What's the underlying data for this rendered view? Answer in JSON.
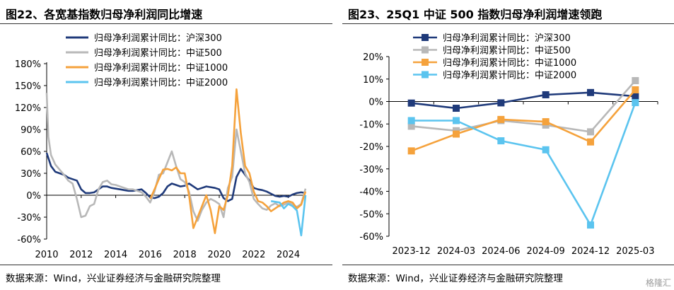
{
  "left": {
    "title": "图22、各宽基指数归母净利润同比增速",
    "source": "数据来源：Wind，兴业证券经济与金融研究院整理"
  },
  "right": {
    "title": "图23、25Q1 中证 500 指数归母净利润增速领跑",
    "source": "数据来源：Wind，兴业证券经济与金融研究院整理"
  },
  "watermark": "格隆汇",
  "chart_data": [
    {
      "type": "line",
      "title": "图22、各宽基指数归母净利润同比增速",
      "xlabel": "",
      "ylabel": "",
      "x_ticks": [
        "2010",
        "2012",
        "2014",
        "2016",
        "2018",
        "2020",
        "2022",
        "2024"
      ],
      "xlim": [
        2010,
        2025
      ],
      "y_ticks": [
        "180%",
        "150%",
        "120%",
        "90%",
        "60%",
        "30%",
        "0%",
        "-30%",
        "-60%"
      ],
      "ylim": [
        -60,
        180
      ],
      "grid": false,
      "legend": "top",
      "series": [
        {
          "name": "归母净利润累计同比：沪深300",
          "color": "#1f3a7a",
          "points": [
            [
              2010.0,
              58
            ],
            [
              2010.25,
              40
            ],
            [
              2010.5,
              32
            ],
            [
              2010.75,
              30
            ],
            [
              2011.0,
              28
            ],
            [
              2011.25,
              24
            ],
            [
              2011.5,
              22
            ],
            [
              2011.75,
              20
            ],
            [
              2012.0,
              8
            ],
            [
              2012.25,
              3
            ],
            [
              2012.5,
              3
            ],
            [
              2012.75,
              4
            ],
            [
              2013.0,
              8
            ],
            [
              2013.25,
              12
            ],
            [
              2013.5,
              12
            ],
            [
              2013.75,
              10
            ],
            [
              2014.0,
              9
            ],
            [
              2014.25,
              8
            ],
            [
              2014.5,
              7
            ],
            [
              2014.75,
              6
            ],
            [
              2015.0,
              6
            ],
            [
              2015.25,
              7
            ],
            [
              2015.5,
              8
            ],
            [
              2015.75,
              3
            ],
            [
              2016.0,
              -3
            ],
            [
              2016.25,
              -4
            ],
            [
              2016.5,
              -2
            ],
            [
              2016.75,
              3
            ],
            [
              2017.0,
              12
            ],
            [
              2017.25,
              16
            ],
            [
              2017.5,
              14
            ],
            [
              2017.75,
              12
            ],
            [
              2018.0,
              13
            ],
            [
              2018.25,
              16
            ],
            [
              2018.5,
              12
            ],
            [
              2018.75,
              8
            ],
            [
              2019.0,
              10
            ],
            [
              2019.25,
              12
            ],
            [
              2019.5,
              11
            ],
            [
              2019.75,
              10
            ],
            [
              2020.0,
              8
            ],
            [
              2020.25,
              -4
            ],
            [
              2020.5,
              -8
            ],
            [
              2020.75,
              -5
            ],
            [
              2021.0,
              25
            ],
            [
              2021.25,
              36
            ],
            [
              2021.5,
              28
            ],
            [
              2021.75,
              20
            ],
            [
              2022.0,
              10
            ],
            [
              2022.25,
              8
            ],
            [
              2022.5,
              7
            ],
            [
              2022.75,
              5
            ],
            [
              2023.0,
              2
            ],
            [
              2023.25,
              -1
            ],
            [
              2023.5,
              -2
            ],
            [
              2023.75,
              -1
            ],
            [
              2024.0,
              -2
            ],
            [
              2024.25,
              1
            ],
            [
              2024.5,
              3
            ],
            [
              2024.75,
              4
            ],
            [
              2025.0,
              3
            ]
          ]
        },
        {
          "name": "归母净利润累计同比：中证500",
          "color": "#b8b8b8",
          "points": [
            [
              2010.0,
              140
            ],
            [
              2010.1,
              80
            ],
            [
              2010.25,
              55
            ],
            [
              2010.5,
              42
            ],
            [
              2010.75,
              35
            ],
            [
              2011.0,
              28
            ],
            [
              2011.25,
              20
            ],
            [
              2011.5,
              16
            ],
            [
              2011.75,
              -5
            ],
            [
              2012.0,
              -30
            ],
            [
              2012.25,
              -28
            ],
            [
              2012.5,
              -15
            ],
            [
              2012.75,
              -12
            ],
            [
              2013.0,
              8
            ],
            [
              2013.25,
              18
            ],
            [
              2013.5,
              20
            ],
            [
              2013.75,
              15
            ],
            [
              2014.0,
              14
            ],
            [
              2014.25,
              12
            ],
            [
              2014.5,
              10
            ],
            [
              2014.75,
              8
            ],
            [
              2015.0,
              8
            ],
            [
              2015.25,
              6
            ],
            [
              2015.5,
              4
            ],
            [
              2015.75,
              -2
            ],
            [
              2016.0,
              -10
            ],
            [
              2016.25,
              5
            ],
            [
              2016.5,
              28
            ],
            [
              2016.75,
              30
            ],
            [
              2017.0,
              45
            ],
            [
              2017.25,
              60
            ],
            [
              2017.5,
              40
            ],
            [
              2017.75,
              22
            ],
            [
              2018.0,
              18
            ],
            [
              2018.25,
              5
            ],
            [
              2018.5,
              -22
            ],
            [
              2018.75,
              -35
            ],
            [
              2019.0,
              -20
            ],
            [
              2019.25,
              -10
            ],
            [
              2019.5,
              -5
            ],
            [
              2019.75,
              -8
            ],
            [
              2020.0,
              -12
            ],
            [
              2020.25,
              -30
            ],
            [
              2020.5,
              10
            ],
            [
              2020.75,
              25
            ],
            [
              2021.0,
              90
            ],
            [
              2021.25,
              60
            ],
            [
              2021.5,
              30
            ],
            [
              2021.75,
              18
            ],
            [
              2022.0,
              -5
            ],
            [
              2022.25,
              -12
            ],
            [
              2022.5,
              -18
            ],
            [
              2022.75,
              -20
            ],
            [
              2023.0,
              -14
            ],
            [
              2023.25,
              -11
            ],
            [
              2023.5,
              -15
            ],
            [
              2023.75,
              -13
            ],
            [
              2024.0,
              -10
            ],
            [
              2024.25,
              -13
            ],
            [
              2024.5,
              -16
            ],
            [
              2024.75,
              -12
            ],
            [
              2025.0,
              9
            ]
          ]
        },
        {
          "name": "归母净利润累计同比：中证1000",
          "color": "#f5a23c",
          "points": [
            [
              2016.0,
              -5
            ],
            [
              2016.25,
              8
            ],
            [
              2016.5,
              22
            ],
            [
              2016.75,
              35
            ],
            [
              2017.0,
              36
            ],
            [
              2017.25,
              34
            ],
            [
              2017.5,
              38
            ],
            [
              2017.75,
              30
            ],
            [
              2018.0,
              30
            ],
            [
              2018.25,
              0
            ],
            [
              2018.5,
              -45
            ],
            [
              2018.75,
              -30
            ],
            [
              2019.0,
              -15
            ],
            [
              2019.25,
              0
            ],
            [
              2019.5,
              -20
            ],
            [
              2019.75,
              -52
            ],
            [
              2020.0,
              -15
            ],
            [
              2020.25,
              -20
            ],
            [
              2020.5,
              0
            ],
            [
              2020.75,
              40
            ],
            [
              2021.0,
              145
            ],
            [
              2021.25,
              85
            ],
            [
              2021.5,
              40
            ],
            [
              2021.75,
              30
            ],
            [
              2022.0,
              5
            ],
            [
              2022.25,
              -8
            ],
            [
              2022.5,
              -10
            ],
            [
              2022.75,
              -15
            ],
            [
              2023.0,
              -22
            ],
            [
              2023.25,
              -18
            ],
            [
              2023.5,
              -14
            ],
            [
              2023.75,
              -10
            ],
            [
              2024.0,
              -8
            ],
            [
              2024.25,
              -10
            ],
            [
              2024.5,
              -18
            ],
            [
              2024.75,
              -13
            ],
            [
              2025.0,
              5
            ]
          ]
        },
        {
          "name": "归母净利润累计同比：中证2000",
          "color": "#5bc4ef",
          "points": [
            [
              2023.0,
              -8
            ],
            [
              2023.25,
              -9
            ],
            [
              2023.5,
              -10
            ],
            [
              2023.75,
              -18
            ],
            [
              2024.0,
              -12
            ],
            [
              2024.25,
              -15
            ],
            [
              2024.5,
              -21
            ],
            [
              2024.75,
              -55
            ],
            [
              2025.0,
              0
            ]
          ]
        }
      ]
    },
    {
      "type": "line",
      "title": "图23、25Q1 中证 500 指数归母净利润增速领跑",
      "xlabel": "",
      "ylabel": "",
      "categories": [
        "2023-12",
        "2024-03",
        "2024-06",
        "2024-09",
        "2024-12",
        "2025-03"
      ],
      "y_ticks": [
        "20%",
        "10%",
        "0%",
        "-10%",
        "-20%",
        "-30%",
        "-40%",
        "-50%",
        "-60%"
      ],
      "ylim": [
        -60,
        20
      ],
      "grid": false,
      "legend": "top",
      "markers": "square",
      "series": [
        {
          "name": "归母净利润累计同比：沪深300",
          "color": "#1f3a7a",
          "values": [
            -0.7,
            -3.0,
            -0.6,
            3.0,
            4.0,
            2.3
          ]
        },
        {
          "name": "归母净利润累计同比：中证500",
          "color": "#b8b8b8",
          "values": [
            -11.0,
            -13.0,
            -8.5,
            -10.5,
            -13.5,
            9.3
          ]
        },
        {
          "name": "归母净利润累计同比：中证1000",
          "color": "#f5a23c",
          "values": [
            -22.0,
            -14.5,
            -8.0,
            -9.0,
            -18.0,
            5.2
          ]
        },
        {
          "name": "归母净利润累计同比：中证2000",
          "color": "#5bc4ef",
          "values": [
            -8.5,
            -8.5,
            -17.5,
            -21.5,
            -55.0,
            -0.5
          ]
        }
      ]
    }
  ]
}
